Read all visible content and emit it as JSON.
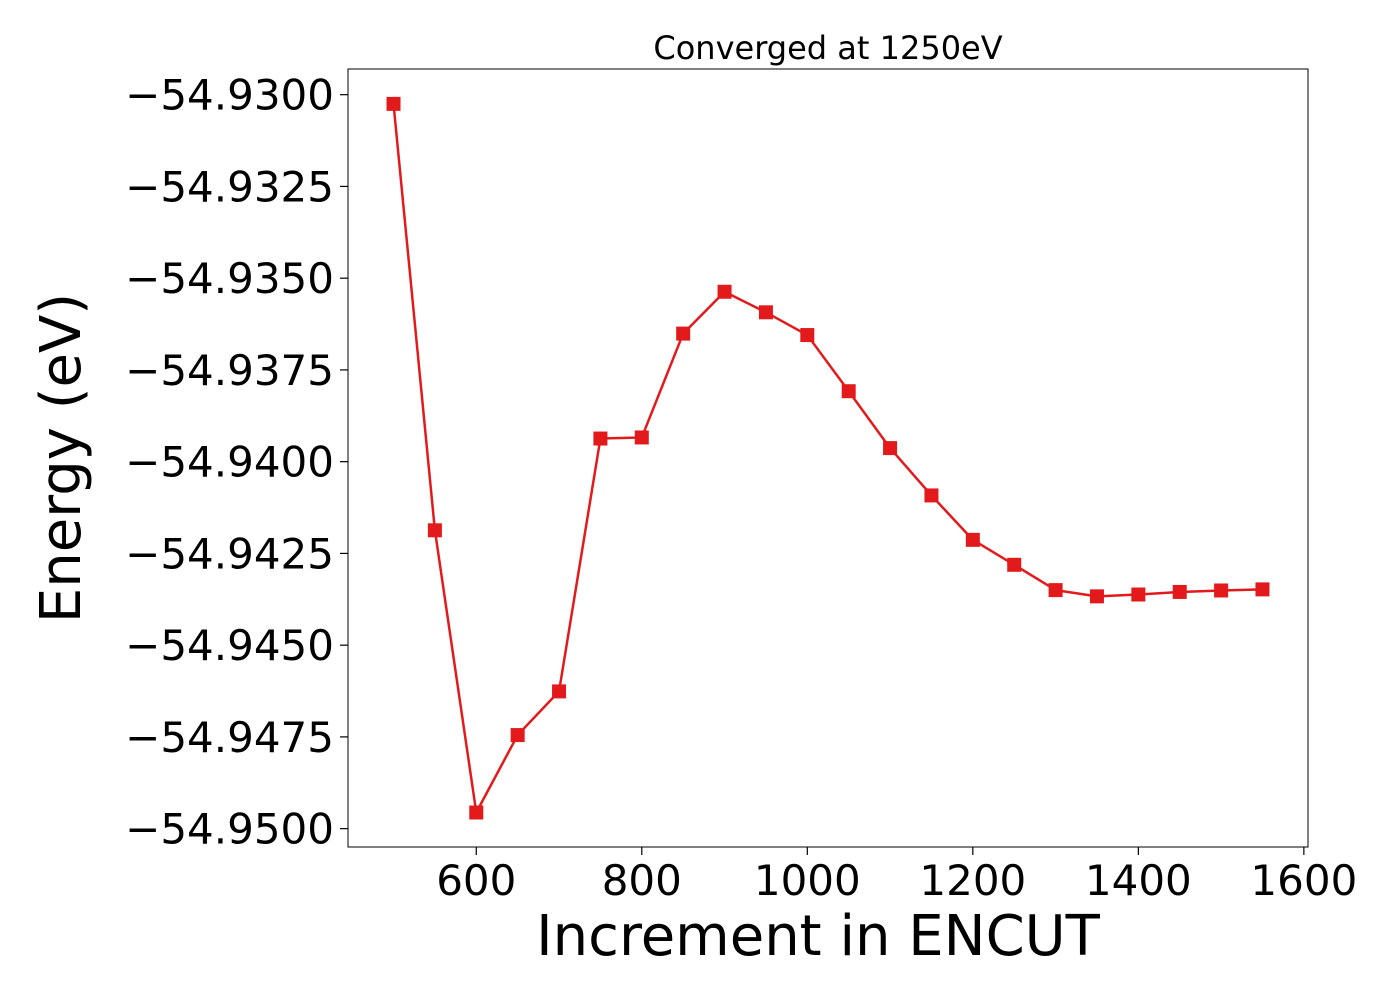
{
  "chart_data": {
    "type": "line",
    "title": "Converged at 1250eV",
    "xlabel": "Increment in ENCUT",
    "ylabel": "Energy (eV)",
    "xlim": [
      445,
      1605
    ],
    "ylim": [
      -54.9505,
      -54.9293
    ],
    "xticks": [
      600,
      800,
      1000,
      1200,
      1400,
      1600
    ],
    "xtick_labels": [
      "600",
      "800",
      "1000",
      "1200",
      "1400",
      "1600"
    ],
    "yticks": [
      -54.93,
      -54.9325,
      -54.935,
      -54.9375,
      -54.94,
      -54.9425,
      -54.945,
      -54.9475,
      -54.95
    ],
    "ytick_labels": [
      "−54.9300",
      "−54.9325",
      "−54.9350",
      "−54.9375",
      "−54.9400",
      "−54.9425",
      "−54.9450",
      "−54.9475",
      "−54.9500"
    ],
    "grid": false,
    "color": "#e31a1c",
    "marker": "square",
    "series": [
      {
        "x": [
          500,
          550,
          600,
          650,
          700,
          750,
          800,
          850,
          900,
          950,
          1000,
          1050,
          1100,
          1150,
          1200,
          1250,
          1300,
          1350,
          1400,
          1450,
          1500,
          1550
        ],
        "values": [
          -54.93025,
          -54.94187,
          -54.94956,
          -54.94745,
          -54.94626,
          -54.93937,
          -54.93934,
          -54.93651,
          -54.93537,
          -54.93593,
          -54.93655,
          -54.93808,
          -54.93963,
          -54.94092,
          -54.94213,
          -54.94281,
          -54.9435,
          -54.94367,
          -54.94362,
          -54.94355,
          -54.94351,
          -54.94348
        ]
      }
    ]
  }
}
